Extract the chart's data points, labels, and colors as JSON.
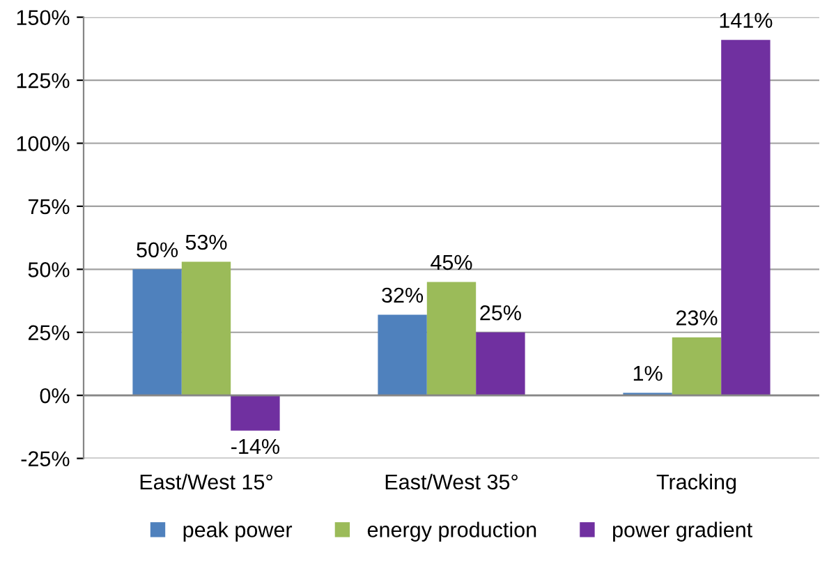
{
  "chart_data": {
    "type": "bar",
    "categories": [
      "East/West 15°",
      "East/West 35°",
      "Tracking"
    ],
    "series": [
      {
        "name": "peak power",
        "color": "#4f81bd",
        "values": [
          50,
          32,
          1
        ],
        "value_labels": [
          "50%",
          "32%",
          "1%"
        ]
      },
      {
        "name": "energy production",
        "color": "#9bbb59",
        "values": [
          53,
          45,
          23
        ],
        "value_labels": [
          "53%",
          "45%",
          "23%"
        ]
      },
      {
        "name": "power gradient",
        "color": "#7030a0",
        "values": [
          -14,
          25,
          141
        ],
        "value_labels": [
          "-14%",
          "25%",
          "141%"
        ]
      }
    ],
    "ylim": [
      -25,
      150
    ],
    "yticks": [
      {
        "value": -25,
        "label": "-25%"
      },
      {
        "value": 0,
        "label": "0%"
      },
      {
        "value": 25,
        "label": "25%"
      },
      {
        "value": 50,
        "label": "50%"
      },
      {
        "value": 75,
        "label": "75%"
      },
      {
        "value": 100,
        "label": "100%"
      },
      {
        "value": 125,
        "label": "125%"
      },
      {
        "value": 150,
        "label": "150%"
      }
    ],
    "grid": "y",
    "legend": "bottom"
  }
}
